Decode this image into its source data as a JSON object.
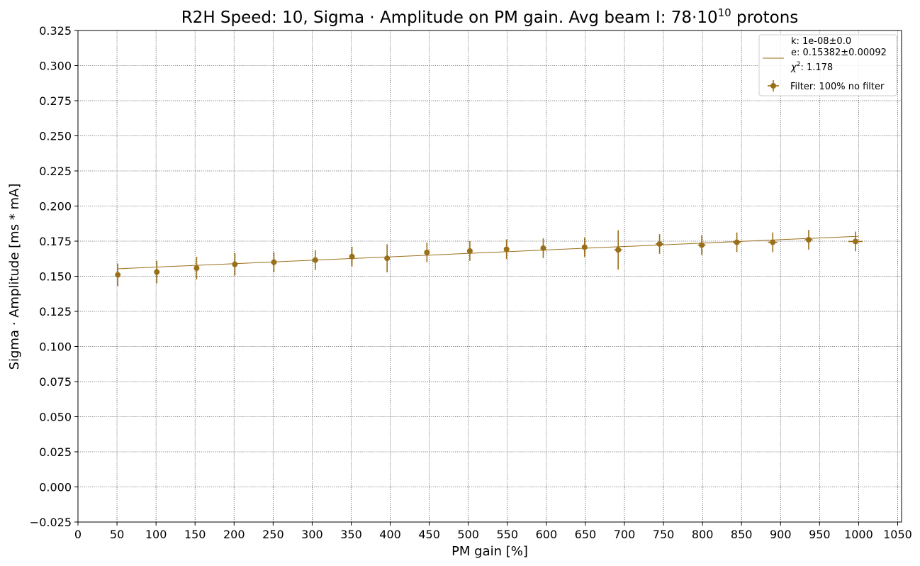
{
  "chart_data": {
    "type": "scatter",
    "title": "R2H Speed: 10, Sigma · Amplitude on PM gain. Avg beam I: 78·10",
    "title_exponent": "10",
    "title_suffix": " protons",
    "xlabel": "PM gain [%]",
    "ylabel": "Sigma · Amplitude [ms * mA]",
    "xlim": [
      0,
      1055
    ],
    "ylim": [
      -0.025,
      0.325
    ],
    "xticks": [
      0,
      50,
      100,
      150,
      200,
      250,
      300,
      350,
      400,
      450,
      500,
      550,
      600,
      650,
      700,
      750,
      800,
      850,
      900,
      950,
      1000,
      1050
    ],
    "yticks": [
      -0.025,
      0.0,
      0.025,
      0.05,
      0.075,
      0.1,
      0.125,
      0.15,
      0.175,
      0.2,
      0.225,
      0.25,
      0.275,
      0.3,
      0.325
    ],
    "grid": true,
    "color": "#9a6f1a",
    "legend_position": "top-right",
    "legend": {
      "fit_k": "k: 1e-08±0.0",
      "fit_e": "e: 0.15382±0.00092",
      "chi_label": "χ",
      "chi_exp": "2",
      "chi_value": ": 1.178",
      "data_label": "Filter: 100% no filter"
    },
    "fit_line": {
      "x": [
        50,
        1000
      ],
      "y": [
        0.1553,
        0.1785
      ]
    },
    "series": [
      {
        "name": "Filter: 100% no filter",
        "x": [
          51,
          101,
          152,
          201,
          251,
          304,
          351,
          396,
          447,
          502,
          549,
          596,
          649,
          692,
          745,
          799,
          844,
          890,
          936,
          996
        ],
        "y": [
          0.151,
          0.153,
          0.1558,
          0.1585,
          0.16,
          0.1615,
          0.164,
          0.1628,
          0.167,
          0.168,
          0.1692,
          0.17,
          0.1707,
          0.1688,
          0.173,
          0.1722,
          0.1742,
          0.1742,
          0.176,
          0.1748
        ],
        "yerr": [
          0.008,
          0.008,
          0.008,
          0.008,
          0.007,
          0.007,
          0.007,
          0.01,
          0.007,
          0.007,
          0.007,
          0.007,
          0.007,
          0.014,
          0.007,
          0.007,
          0.007,
          0.007,
          0.007,
          0.007
        ],
        "xerr": [
          0,
          0,
          0,
          0,
          0,
          0,
          0,
          0,
          0,
          0,
          0,
          0,
          3,
          5,
          5,
          5,
          5,
          6,
          5,
          9
        ]
      }
    ]
  }
}
